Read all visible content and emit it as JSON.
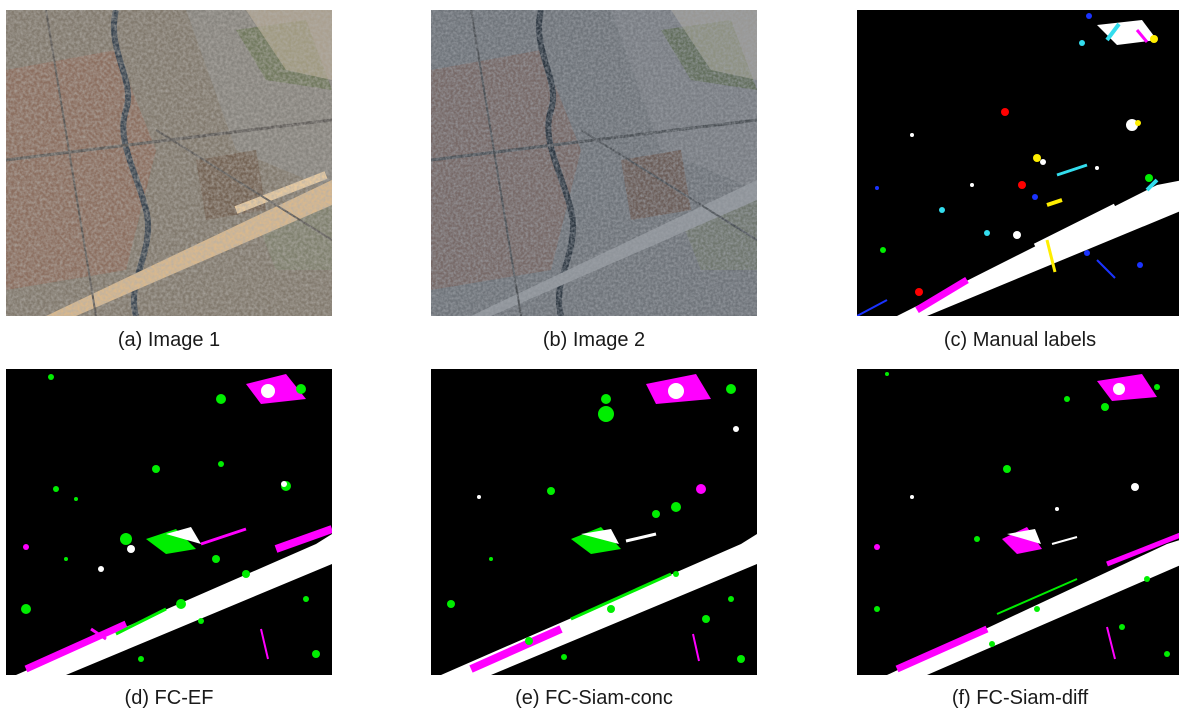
{
  "panels": [
    {
      "id": "a",
      "caption": "(a) Image 1"
    },
    {
      "id": "b",
      "caption": "(b) Image 2"
    },
    {
      "id": "c",
      "caption": "(c) Manual labels"
    },
    {
      "id": "d",
      "caption": "(d) FC-EF"
    },
    {
      "id": "e",
      "caption": "(e) FC-Siam-conc"
    },
    {
      "id": "f",
      "caption": "(f) FC-Siam-diff"
    }
  ],
  "colors": {
    "background_map": "#000000",
    "true_positive": "#ffffff",
    "false_positive": "#00ee00",
    "false_negative": "#ff00ff",
    "label_red": "#ff0000",
    "label_blue": "#1a33ff",
    "label_cyan": "#33ddee",
    "label_yellow": "#ffee00",
    "satellite_base": "#7b7870"
  }
}
